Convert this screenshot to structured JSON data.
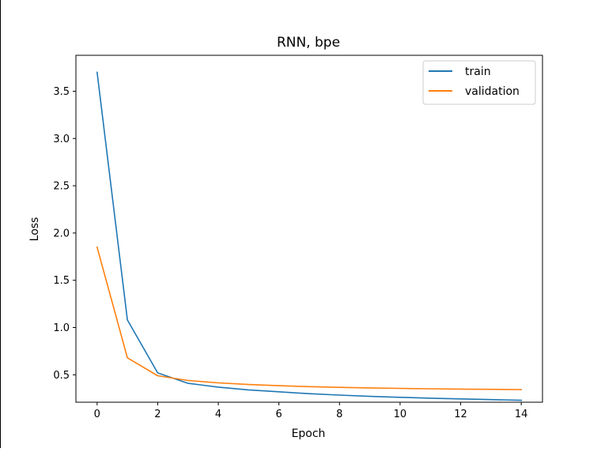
{
  "chart_data": {
    "type": "line",
    "title": "RNN, bpe",
    "xlabel": "Epoch",
    "ylabel": "Loss",
    "x": [
      0,
      1,
      2,
      3,
      4,
      5,
      6,
      7,
      8,
      9,
      10,
      11,
      12,
      13,
      14
    ],
    "xlim": [
      -0.7,
      14.7
    ],
    "ylim": [
      0.21,
      3.88
    ],
    "xticks": [
      0,
      2,
      4,
      6,
      8,
      10,
      12,
      14
    ],
    "xtick_labels": [
      "0",
      "2",
      "4",
      "6",
      "8",
      "10",
      "12",
      "14"
    ],
    "yticks": [
      0.5,
      1.0,
      1.5,
      2.0,
      2.5,
      3.0,
      3.5
    ],
    "ytick_labels": [
      "0.5",
      "1.0",
      "1.5",
      "2.0",
      "2.5",
      "3.0",
      "3.5"
    ],
    "grid": false,
    "legend_position": "top-right",
    "series": [
      {
        "name": "train",
        "color": "#1f77b4",
        "values": [
          3.7,
          1.08,
          0.52,
          0.41,
          0.37,
          0.34,
          0.32,
          0.3,
          0.285,
          0.272,
          0.262,
          0.253,
          0.245,
          0.238,
          0.231
        ]
      },
      {
        "name": "validation",
        "color": "#ff7f0e",
        "values": [
          1.85,
          0.68,
          0.49,
          0.44,
          0.415,
          0.397,
          0.385,
          0.375,
          0.367,
          0.361,
          0.356,
          0.352,
          0.349,
          0.346,
          0.344
        ]
      }
    ]
  }
}
